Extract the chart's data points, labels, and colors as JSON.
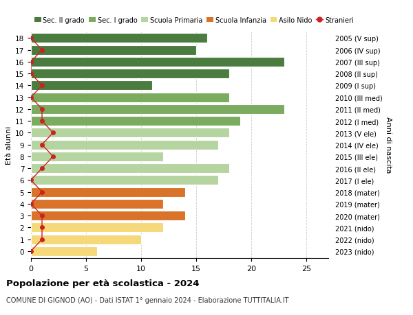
{
  "ages": [
    18,
    17,
    16,
    15,
    14,
    13,
    12,
    11,
    10,
    9,
    8,
    7,
    6,
    5,
    4,
    3,
    2,
    1,
    0
  ],
  "right_labels": [
    "2005 (V sup)",
    "2006 (IV sup)",
    "2007 (III sup)",
    "2008 (II sup)",
    "2009 (I sup)",
    "2010 (III med)",
    "2011 (II med)",
    "2012 (I med)",
    "2013 (V ele)",
    "2014 (IV ele)",
    "2015 (III ele)",
    "2016 (II ele)",
    "2017 (I ele)",
    "2018 (mater)",
    "2019 (mater)",
    "2020 (mater)",
    "2021 (nido)",
    "2022 (nido)",
    "2023 (nido)"
  ],
  "bar_values": [
    16,
    15,
    23,
    18,
    11,
    18,
    23,
    19,
    18,
    17,
    12,
    18,
    17,
    14,
    12,
    14,
    12,
    10,
    6
  ],
  "bar_colors": [
    "#4a7c3f",
    "#4a7c3f",
    "#4a7c3f",
    "#4a7c3f",
    "#4a7c3f",
    "#7aab5e",
    "#7aab5e",
    "#7aab5e",
    "#b5d4a0",
    "#b5d4a0",
    "#b5d4a0",
    "#b5d4a0",
    "#b5d4a0",
    "#d9732a",
    "#d9732a",
    "#d9732a",
    "#f5d87a",
    "#f5d87a",
    "#f5d87a"
  ],
  "stranieri_values": [
    0,
    1,
    0,
    0,
    1,
    0,
    1,
    1,
    2,
    1,
    2,
    1,
    0,
    1,
    0,
    1,
    1,
    1,
    0
  ],
  "legend_labels": [
    "Sec. II grado",
    "Sec. I grado",
    "Scuola Primaria",
    "Scuola Infanzia",
    "Asilo Nido",
    "Stranieri"
  ],
  "legend_colors": [
    "#4a7c3f",
    "#7aab5e",
    "#b5d4a0",
    "#d9732a",
    "#f5d87a",
    "#cc2222"
  ],
  "title": "Popolazione per età scolastica - 2024",
  "subtitle": "COMUNE DI GIGNOD (AO) - Dati ISTAT 1° gennaio 2024 - Elaborazione TUTTITALIA.IT",
  "ylabel_left": "Età alunni",
  "ylabel_right": "Anni di nascita",
  "xlim": [
    0,
    27
  ],
  "xticks": [
    0,
    5,
    10,
    15,
    20,
    25
  ],
  "background_color": "#ffffff",
  "bar_edge_color": "#ffffff",
  "grid_color": "#cccccc",
  "grid_linestyle": "--",
  "bar_height": 0.82
}
